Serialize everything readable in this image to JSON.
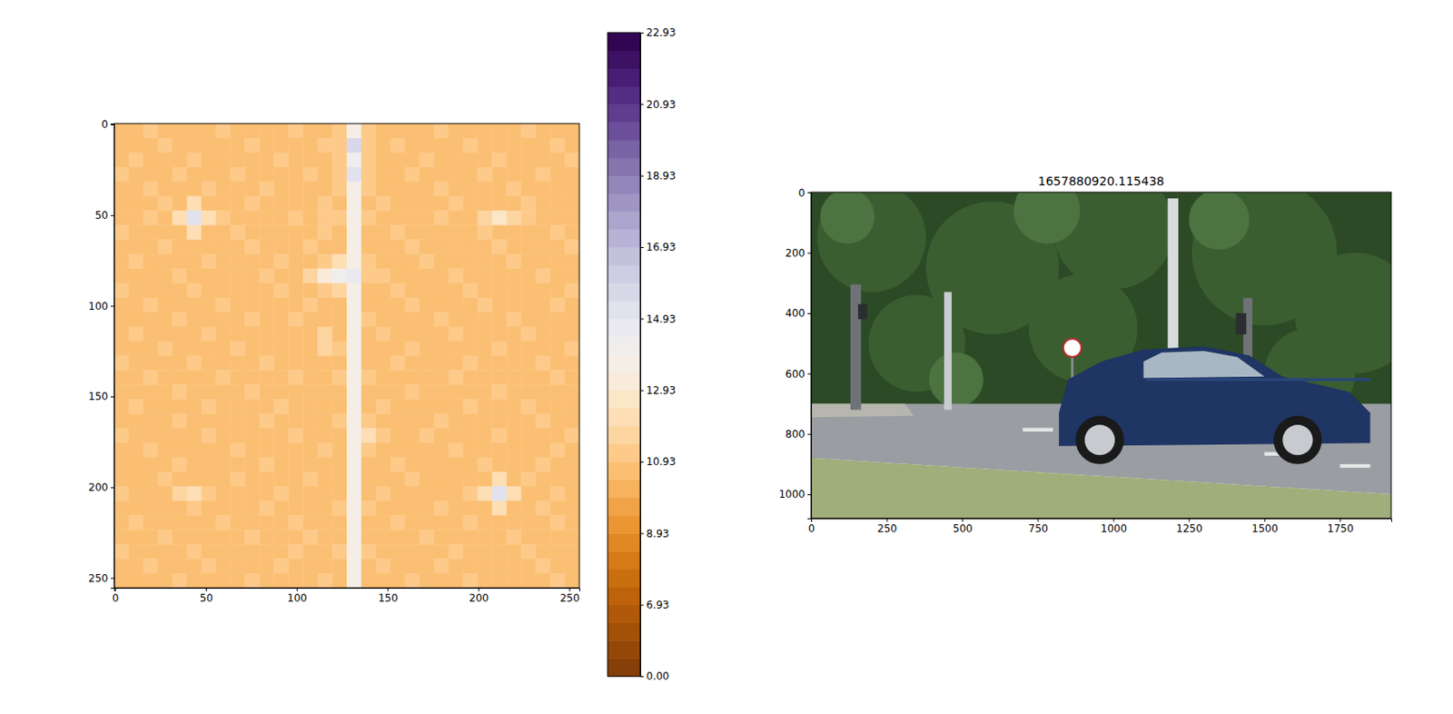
{
  "chart_data": [
    {
      "type": "heatmap",
      "xlim": [
        -0.5,
        255.5
      ],
      "ylim": [
        255.5,
        -0.5
      ],
      "xticks": [
        0,
        50,
        100,
        150,
        200,
        250
      ],
      "yticks": [
        0,
        50,
        100,
        150,
        200,
        250
      ],
      "colorbar": {
        "range": [
          0,
          22.93
        ],
        "ticks": [
          {
            "value": 0,
            "label": "0.00"
          },
          6.93,
          8.93,
          10.93,
          12.93,
          14.93,
          16.93,
          18.93,
          20.93,
          22.93
        ]
      },
      "cells": [
        [
          10.9,
          10.8,
          11.0,
          10.9,
          10.9,
          10.8,
          10.9,
          11.0,
          10.9,
          10.9,
          10.8,
          10.9,
          11.0,
          10.9,
          10.9,
          11.0,
          13.8,
          11.0,
          10.9,
          10.9,
          10.8,
          10.9,
          11.0,
          10.9,
          10.9,
          10.8,
          10.9,
          10.9,
          11.0,
          10.9,
          10.8,
          10.9
        ],
        [
          10.8,
          10.9,
          10.9,
          11.0,
          10.9,
          10.9,
          10.8,
          10.9,
          10.9,
          11.0,
          10.9,
          10.9,
          10.8,
          10.9,
          11.0,
          11.3,
          15.5,
          11.3,
          10.9,
          11.0,
          10.9,
          10.8,
          10.9,
          10.9,
          11.0,
          10.9,
          10.9,
          10.8,
          10.9,
          10.9,
          11.0,
          10.9
        ],
        [
          10.9,
          11.0,
          10.9,
          10.8,
          10.9,
          11.0,
          10.9,
          10.9,
          10.8,
          10.9,
          10.9,
          11.0,
          10.9,
          10.9,
          10.8,
          11.1,
          14.2,
          11.1,
          10.8,
          10.9,
          10.9,
          11.0,
          10.9,
          10.8,
          10.9,
          10.9,
          11.0,
          10.9,
          10.8,
          10.9,
          10.9,
          11.0
        ],
        [
          11.0,
          10.9,
          10.8,
          10.9,
          11.0,
          10.9,
          10.9,
          10.8,
          11.0,
          10.9,
          10.9,
          10.8,
          10.9,
          11.0,
          10.9,
          11.3,
          15.2,
          11.3,
          10.9,
          10.9,
          11.0,
          10.9,
          10.8,
          10.9,
          10.9,
          11.0,
          10.9,
          10.9,
          10.8,
          11.0,
          10.9,
          10.9
        ],
        [
          10.9,
          10.9,
          11.0,
          10.9,
          10.8,
          10.9,
          11.0,
          10.9,
          10.9,
          10.8,
          11.0,
          10.9,
          10.9,
          10.8,
          10.9,
          11.0,
          13.6,
          11.0,
          10.9,
          10.8,
          10.9,
          10.9,
          11.0,
          10.9,
          10.8,
          10.9,
          10.9,
          11.0,
          10.9,
          10.9,
          10.8,
          10.9
        ],
        [
          10.8,
          10.9,
          10.9,
          11.0,
          10.9,
          12.0,
          10.9,
          10.8,
          10.9,
          11.0,
          10.9,
          10.9,
          10.8,
          10.9,
          11.4,
          10.9,
          13.6,
          10.9,
          11.0,
          10.9,
          10.9,
          10.8,
          10.9,
          11.0,
          10.9,
          10.9,
          10.8,
          10.9,
          11.0,
          10.9,
          10.9,
          10.8
        ],
        [
          10.9,
          10.8,
          11.0,
          10.9,
          12.0,
          15.0,
          12.0,
          11.0,
          10.9,
          10.9,
          10.8,
          10.9,
          11.0,
          10.9,
          11.2,
          11.0,
          13.6,
          11.0,
          10.9,
          10.9,
          10.8,
          10.9,
          11.0,
          10.9,
          10.9,
          11.6,
          12.6,
          11.6,
          11.0,
          10.9,
          10.8,
          10.9
        ],
        [
          11.0,
          10.9,
          10.9,
          10.8,
          10.9,
          12.0,
          10.9,
          10.9,
          11.0,
          10.9,
          10.9,
          10.8,
          10.9,
          10.9,
          11.0,
          10.9,
          13.6,
          10.9,
          10.8,
          11.0,
          10.9,
          10.9,
          10.9,
          10.8,
          10.9,
          11.0,
          10.9,
          10.9,
          10.9,
          10.8,
          11.0,
          10.9
        ],
        [
          10.9,
          10.9,
          10.8,
          11.0,
          10.9,
          10.9,
          10.8,
          10.9,
          10.9,
          11.0,
          10.9,
          10.9,
          10.8,
          11.0,
          10.9,
          10.9,
          13.6,
          10.9,
          10.9,
          10.8,
          11.0,
          10.9,
          10.9,
          10.9,
          10.8,
          10.9,
          11.0,
          10.9,
          10.9,
          10.9,
          10.8,
          11.0
        ],
        [
          10.8,
          11.0,
          10.9,
          10.9,
          10.8,
          10.9,
          11.0,
          10.9,
          10.8,
          10.9,
          10.9,
          11.0,
          10.9,
          10.9,
          11.4,
          12.0,
          13.8,
          11.0,
          10.9,
          10.9,
          10.8,
          11.0,
          10.9,
          10.9,
          10.9,
          10.8,
          10.9,
          11.0,
          10.9,
          10.8,
          10.9,
          10.9
        ],
        [
          10.9,
          10.9,
          10.9,
          10.8,
          11.0,
          10.9,
          10.9,
          10.8,
          10.9,
          10.9,
          11.0,
          10.9,
          10.8,
          11.8,
          13.2,
          14.4,
          14.6,
          11.4,
          11.0,
          10.9,
          10.9,
          10.8,
          10.9,
          11.0,
          10.9,
          10.9,
          10.8,
          10.9,
          10.9,
          11.0,
          10.9,
          10.8
        ],
        [
          11.0,
          10.8,
          10.9,
          10.9,
          10.9,
          11.0,
          10.8,
          10.9,
          10.9,
          10.8,
          10.9,
          11.0,
          10.9,
          10.9,
          11.3,
          11.8,
          13.6,
          10.9,
          10.9,
          11.0,
          10.8,
          10.9,
          10.9,
          10.9,
          11.0,
          10.8,
          10.9,
          10.9,
          10.9,
          10.8,
          10.9,
          11.0
        ],
        [
          10.9,
          10.9,
          11.0,
          10.9,
          10.8,
          10.9,
          10.9,
          11.0,
          10.9,
          10.9,
          10.8,
          10.9,
          10.9,
          11.0,
          10.9,
          10.9,
          13.6,
          10.9,
          10.8,
          10.9,
          11.0,
          10.9,
          10.8,
          10.9,
          10.9,
          11.0,
          10.9,
          10.8,
          10.9,
          10.9,
          11.0,
          10.9
        ],
        [
          10.8,
          10.9,
          10.9,
          10.8,
          11.0,
          10.9,
          10.9,
          10.9,
          10.8,
          11.0,
          10.9,
          10.9,
          11.0,
          10.9,
          10.9,
          10.8,
          13.6,
          11.0,
          10.9,
          10.9,
          10.9,
          10.8,
          11.0,
          10.9,
          10.9,
          10.8,
          10.9,
          11.0,
          10.9,
          10.9,
          10.8,
          10.9
        ],
        [
          10.9,
          11.0,
          10.8,
          10.9,
          10.9,
          10.9,
          11.0,
          10.8,
          10.9,
          10.9,
          10.9,
          10.8,
          10.9,
          10.9,
          11.7,
          10.9,
          13.6,
          10.9,
          11.0,
          10.8,
          10.9,
          10.9,
          10.9,
          11.0,
          10.8,
          10.9,
          10.9,
          10.9,
          11.0,
          10.8,
          10.9,
          10.9
        ],
        [
          10.9,
          10.9,
          10.9,
          11.0,
          10.8,
          10.9,
          10.9,
          10.9,
          11.0,
          10.8,
          10.9,
          10.9,
          10.9,
          10.8,
          11.6,
          11.0,
          13.6,
          10.8,
          10.9,
          10.9,
          11.0,
          10.9,
          10.9,
          10.8,
          10.9,
          10.9,
          11.0,
          10.9,
          10.8,
          10.9,
          10.9,
          11.0
        ],
        [
          11.0,
          10.8,
          10.9,
          10.9,
          10.9,
          11.0,
          10.8,
          10.9,
          10.9,
          10.9,
          11.0,
          10.9,
          10.8,
          10.9,
          10.9,
          10.9,
          13.6,
          10.9,
          10.9,
          11.0,
          10.8,
          10.9,
          10.9,
          10.9,
          11.0,
          10.9,
          10.8,
          10.9,
          10.9,
          11.0,
          10.9,
          10.8
        ],
        [
          10.9,
          10.9,
          11.0,
          10.8,
          10.9,
          10.9,
          10.9,
          11.0,
          10.8,
          10.9,
          10.9,
          10.8,
          11.0,
          10.9,
          10.9,
          11.0,
          13.6,
          11.0,
          10.8,
          10.9,
          10.9,
          10.9,
          10.8,
          11.0,
          10.9,
          10.9,
          10.9,
          10.8,
          10.9,
          10.9,
          11.0,
          10.9
        ],
        [
          10.8,
          10.9,
          10.9,
          10.9,
          11.0,
          10.8,
          10.9,
          10.9,
          10.9,
          11.0,
          10.8,
          10.9,
          10.9,
          10.9,
          10.8,
          10.9,
          13.6,
          10.9,
          10.9,
          10.8,
          11.0,
          10.9,
          10.9,
          10.9,
          10.8,
          10.9,
          11.0,
          10.9,
          10.9,
          10.8,
          10.9,
          10.9
        ],
        [
          10.9,
          11.0,
          10.9,
          10.8,
          10.9,
          10.9,
          11.0,
          10.8,
          10.9,
          10.9,
          10.9,
          11.0,
          10.8,
          10.9,
          10.9,
          10.9,
          13.6,
          10.9,
          11.0,
          10.9,
          10.9,
          10.8,
          10.9,
          10.9,
          11.0,
          10.9,
          10.8,
          10.9,
          11.0,
          10.9,
          10.9,
          10.8
        ],
        [
          10.9,
          10.9,
          10.8,
          10.9,
          11.0,
          10.9,
          10.9,
          10.9,
          10.8,
          10.9,
          11.0,
          10.9,
          10.9,
          10.8,
          10.9,
          11.0,
          13.6,
          11.1,
          10.9,
          10.9,
          10.8,
          10.9,
          11.0,
          10.9,
          10.9,
          10.8,
          10.9,
          10.9,
          10.9,
          11.0,
          10.8,
          10.9
        ],
        [
          11.0,
          10.9,
          10.9,
          10.9,
          10.8,
          10.9,
          11.0,
          10.9,
          10.9,
          10.8,
          10.9,
          10.9,
          11.0,
          10.9,
          10.8,
          10.9,
          13.7,
          12.4,
          11.0,
          10.9,
          10.9,
          11.0,
          10.8,
          10.9,
          10.9,
          10.9,
          11.0,
          10.8,
          10.9,
          10.9,
          10.9,
          11.0
        ],
        [
          10.8,
          10.9,
          11.0,
          10.9,
          10.9,
          10.8,
          10.9,
          10.9,
          11.0,
          10.9,
          10.9,
          10.8,
          10.9,
          10.9,
          11.0,
          10.9,
          13.6,
          11.0,
          10.9,
          10.8,
          10.9,
          10.9,
          10.9,
          11.0,
          10.8,
          10.9,
          10.9,
          10.9,
          10.8,
          10.9,
          11.0,
          10.9
        ],
        [
          10.9,
          10.9,
          10.9,
          10.8,
          11.0,
          10.9,
          10.8,
          10.9,
          10.9,
          10.9,
          11.0,
          10.8,
          10.9,
          10.9,
          10.9,
          10.8,
          13.6,
          10.9,
          10.9,
          11.0,
          10.9,
          10.8,
          10.9,
          10.9,
          10.9,
          11.0,
          10.9,
          10.8,
          10.9,
          11.0,
          10.9,
          10.9
        ],
        [
          10.9,
          10.8,
          10.9,
          11.0,
          10.9,
          10.9,
          10.9,
          10.8,
          11.0,
          10.9,
          10.9,
          10.9,
          10.8,
          11.0,
          10.9,
          10.9,
          13.6,
          10.9,
          10.8,
          10.9,
          11.0,
          10.9,
          10.9,
          10.8,
          10.9,
          10.9,
          12.0,
          10.9,
          11.0,
          10.9,
          10.8,
          10.9
        ],
        [
          11.0,
          10.9,
          10.9,
          10.9,
          11.8,
          12.2,
          11.0,
          10.9,
          10.9,
          10.8,
          10.9,
          11.0,
          10.9,
          10.9,
          10.8,
          10.9,
          13.8,
          10.9,
          11.0,
          10.9,
          10.9,
          10.9,
          10.8,
          10.9,
          11.0,
          12.2,
          15.2,
          12.2,
          10.9,
          10.9,
          11.0,
          10.8
        ],
        [
          10.9,
          10.9,
          10.8,
          10.9,
          10.9,
          11.0,
          10.9,
          10.9,
          10.8,
          10.9,
          11.0,
          10.9,
          10.9,
          10.8,
          10.9,
          11.0,
          13.6,
          11.0,
          10.9,
          10.8,
          10.9,
          10.9,
          11.0,
          10.9,
          10.9,
          10.9,
          12.0,
          10.9,
          10.8,
          11.0,
          10.9,
          10.9
        ],
        [
          10.8,
          11.0,
          10.9,
          10.9,
          10.9,
          10.8,
          10.9,
          11.0,
          10.9,
          10.9,
          10.9,
          10.8,
          11.0,
          10.9,
          10.9,
          10.9,
          13.6,
          10.9,
          10.9,
          11.0,
          10.8,
          10.9,
          10.9,
          10.9,
          11.0,
          10.8,
          10.9,
          10.9,
          10.9,
          10.8,
          11.0,
          10.9
        ],
        [
          10.9,
          10.9,
          10.9,
          11.0,
          10.8,
          10.9,
          10.9,
          10.9,
          10.8,
          11.0,
          10.9,
          10.9,
          10.9,
          11.0,
          10.8,
          10.9,
          13.6,
          10.8,
          10.9,
          10.9,
          10.9,
          11.0,
          10.8,
          10.9,
          10.9,
          10.9,
          10.8,
          11.0,
          10.9,
          10.9,
          10.9,
          10.8
        ],
        [
          11.0,
          10.8,
          10.9,
          10.9,
          10.9,
          11.0,
          10.8,
          10.9,
          10.9,
          10.9,
          10.8,
          10.9,
          11.0,
          10.9,
          10.9,
          11.0,
          13.6,
          11.0,
          10.9,
          10.8,
          10.9,
          10.9,
          10.9,
          11.0,
          10.8,
          10.9,
          10.9,
          10.9,
          11.0,
          10.9,
          10.8,
          10.9
        ],
        [
          10.9,
          10.9,
          11.0,
          10.8,
          10.9,
          10.9,
          11.0,
          10.9,
          10.8,
          10.9,
          10.9,
          11.0,
          10.9,
          10.8,
          10.9,
          10.9,
          13.7,
          10.9,
          11.0,
          10.9,
          10.8,
          10.9,
          11.0,
          10.9,
          10.9,
          10.8,
          10.9,
          10.9,
          10.9,
          11.0,
          10.9,
          10.9
        ],
        [
          10.9,
          10.8,
          10.9,
          10.9,
          11.0,
          10.9,
          10.9,
          10.8,
          10.9,
          11.0,
          10.9,
          10.9,
          10.8,
          10.9,
          11.0,
          10.9,
          13.9,
          10.9,
          10.9,
          10.9,
          11.0,
          10.8,
          10.9,
          10.9,
          11.0,
          10.9,
          10.9,
          10.8,
          10.9,
          10.9,
          11.0,
          10.9
        ]
      ]
    },
    {
      "type": "image",
      "title": "1657880920.115438",
      "xlim": [
        -0.5,
        1919.5
      ],
      "ylim": [
        1079.5,
        -0.5
      ],
      "xticks": [
        0,
        250,
        500,
        750,
        1000,
        1250,
        1500,
        1750
      ],
      "yticks": [
        0,
        200,
        400,
        600,
        800,
        1000
      ]
    }
  ]
}
